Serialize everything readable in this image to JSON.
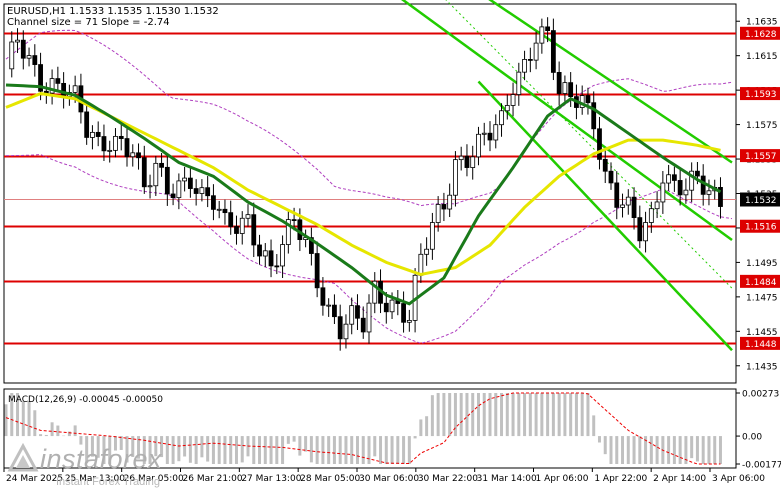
{
  "header": {
    "symbol_line": "EURUSD,H1  1.1533 1.1535 1.1530 1.1532",
    "channel_line": "Channel size = 71 Slope = -2.74"
  },
  "macd": {
    "label": "MACD(12,26,9) -0.00045 -0.00050",
    "ticks": [
      "0.00273",
      "0.00",
      "-0.00177"
    ]
  },
  "watermark": {
    "main": "instaforex",
    "sub": "Instant Forex Trading"
  },
  "colors": {
    "level_line": "#dd0000",
    "level_tag": "#dd0000",
    "current_tag": "#000000",
    "candle": "#000000",
    "ma_fast": "#1a7a1a",
    "ma_slow": "#e6e600",
    "channel": "#22cc00",
    "bands": "#b040c0",
    "macd_hist": "#c0c0c0",
    "macd_signal": "#ee0000"
  },
  "chart_data": {
    "type": "candlestick",
    "symbol": "EURUSD",
    "timeframe": "H1",
    "ylim": [
      1.1425,
      1.1645
    ],
    "y_ticks": [
      "1.1635",
      "1.1615",
      "1.1595",
      "1.1575",
      "1.1555",
      "1.1535",
      "1.1515",
      "1.1495",
      "1.1475",
      "1.1455",
      "1.1435"
    ],
    "x_tick_labels": [
      "24 Mar 2025",
      "25 Mar 13:00",
      "26 Mar 05:00",
      "26 Mar 21:00",
      "27 Mar 13:00",
      "28 Mar 05:00",
      "30 Mar 06:00",
      "30 Mar 22:00",
      "31 Mar 14:00",
      "1 Apr 06:00",
      "1 Apr 22:00",
      "2 Apr 14:00",
      "3 Apr 06:00"
    ],
    "levels": [
      {
        "value": 1.1628,
        "label": "1.1628"
      },
      {
        "value": 1.1593,
        "label": "1.1593"
      },
      {
        "value": 1.1557,
        "label": "1.1557"
      },
      {
        "value": 1.1516,
        "label": "1.1516"
      },
      {
        "value": 1.1484,
        "label": "1.1484"
      },
      {
        "value": 1.1448,
        "label": "1.1448"
      }
    ],
    "current_price": {
      "value": 1.1532,
      "label": "1.1532"
    },
    "close_path": [
      [
        0,
        1.1604
      ],
      [
        2,
        1.1622
      ],
      [
        4,
        1.1612
      ],
      [
        6,
        1.1602
      ],
      [
        8,
        1.16
      ],
      [
        10,
        1.1597
      ],
      [
        12,
        1.1588
      ],
      [
        14,
        1.157
      ],
      [
        16,
        1.1563
      ],
      [
        18,
        1.1568
      ],
      [
        20,
        1.1567
      ],
      [
        22,
        1.156
      ],
      [
        24,
        1.1535
      ],
      [
        26,
        1.1548
      ],
      [
        28,
        1.1538
      ],
      [
        30,
        1.1542
      ],
      [
        32,
        1.1546
      ],
      [
        34,
        1.1532
      ],
      [
        36,
        1.1528
      ],
      [
        38,
        1.1515
      ],
      [
        40,
        1.1518
      ],
      [
        42,
        1.1522
      ],
      [
        44,
        1.1505
      ],
      [
        46,
        1.149
      ],
      [
        48,
        1.1502
      ],
      [
        50,
        1.1518
      ],
      [
        52,
        1.1508
      ],
      [
        54,
        1.1488
      ],
      [
        56,
        1.1468
      ],
      [
        58,
        1.1455
      ],
      [
        60,
        1.146
      ],
      [
        62,
        1.1458
      ],
      [
        64,
        1.148
      ],
      [
        66,
        1.1475
      ],
      [
        68,
        1.147
      ],
      [
        70,
        1.1462
      ],
      [
        72,
        1.1495
      ],
      [
        74,
        1.1515
      ],
      [
        76,
        1.153
      ],
      [
        78,
        1.1555
      ],
      [
        80,
        1.1557
      ],
      [
        82,
        1.1562
      ],
      [
        84,
        1.1568
      ],
      [
        86,
        1.1575
      ],
      [
        88,
        1.16
      ],
      [
        90,
        1.1612
      ],
      [
        92,
        1.1628
      ],
      [
        94,
        1.1625
      ],
      [
        96,
        1.159
      ],
      [
        98,
        1.159
      ],
      [
        100,
        1.1592
      ],
      [
        102,
        1.158
      ],
      [
        104,
        1.1545
      ],
      [
        106,
        1.153
      ],
      [
        108,
        1.1523
      ],
      [
        110,
        1.1512
      ],
      [
        112,
        1.1523
      ],
      [
        114,
        1.155
      ],
      [
        116,
        1.154
      ],
      [
        118,
        1.1537
      ],
      [
        120,
        1.154
      ],
      [
        122,
        1.1535
      ],
      [
        124,
        1.1532
      ]
    ],
    "ma_fast_path": [
      [
        0,
        1.1598
      ],
      [
        6,
        1.1597
      ],
      [
        12,
        1.1592
      ],
      [
        18,
        1.158
      ],
      [
        24,
        1.1567
      ],
      [
        30,
        1.1553
      ],
      [
        36,
        1.1545
      ],
      [
        42,
        1.153
      ],
      [
        48,
        1.1519
      ],
      [
        54,
        1.1506
      ],
      [
        60,
        1.1492
      ],
      [
        66,
        1.1476
      ],
      [
        70,
        1.1471
      ],
      [
        76,
        1.1486
      ],
      [
        82,
        1.1522
      ],
      [
        88,
        1.155
      ],
      [
        94,
        1.158
      ],
      [
        98,
        1.159
      ],
      [
        102,
        1.1584
      ],
      [
        108,
        1.157
      ],
      [
        114,
        1.1556
      ],
      [
        120,
        1.1543
      ],
      [
        124,
        1.1536
      ]
    ],
    "ma_slow_path": [
      [
        0,
        1.1585
      ],
      [
        6,
        1.1593
      ],
      [
        12,
        1.159
      ],
      [
        18,
        1.158
      ],
      [
        24,
        1.157
      ],
      [
        30,
        1.156
      ],
      [
        36,
        1.155
      ],
      [
        42,
        1.1537
      ],
      [
        48,
        1.1527
      ],
      [
        54,
        1.1517
      ],
      [
        60,
        1.1505
      ],
      [
        66,
        1.1495
      ],
      [
        72,
        1.1488
      ],
      [
        78,
        1.1492
      ],
      [
        84,
        1.1505
      ],
      [
        90,
        1.1527
      ],
      [
        96,
        1.1545
      ],
      [
        102,
        1.1558
      ],
      [
        108,
        1.1566
      ],
      [
        114,
        1.1566
      ],
      [
        120,
        1.1563
      ],
      [
        124,
        1.156
      ]
    ],
    "channel_lines": [
      {
        "from": [
          67,
          1.1652
        ],
        "to": [
          126,
          1.1508
        ]
      },
      {
        "from": [
          82,
          1.1652
        ],
        "to": [
          126,
          1.1553
        ]
      },
      {
        "from": [
          82,
          1.16
        ],
        "to": [
          126,
          1.1444
        ]
      }
    ],
    "macd_histogram_range": [
      -0.00177,
      0.00273
    ]
  }
}
